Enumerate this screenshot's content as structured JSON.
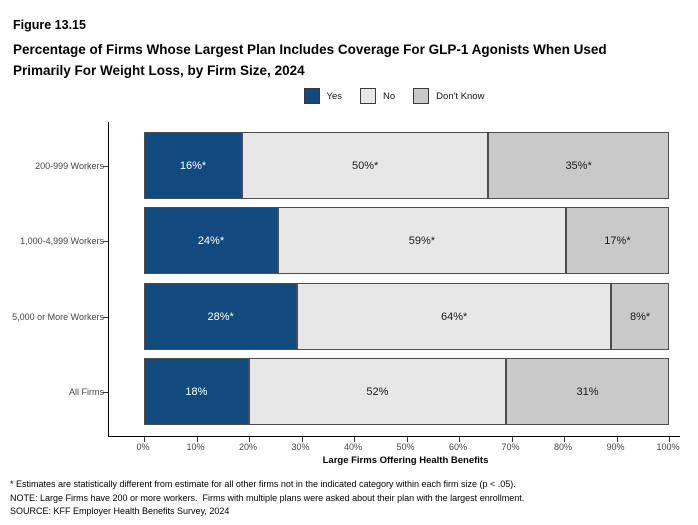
{
  "figure": {
    "number": "Figure 13.15",
    "title_line1": "Percentage of Firms Whose Largest Plan Includes Coverage For GLP-1 Agonists When Used",
    "title_line2": "Primarily For Weight Loss, by Firm Size, 2024"
  },
  "chart_data": {
    "type": "bar",
    "orientation": "horizontal",
    "stacked": true,
    "title": "Percentage of Firms Whose Largest Plan Includes Coverage For GLP-1 Agonists When Used Primarily For Weight Loss, by Firm Size, 2024",
    "categories": [
      "200-999 Workers",
      "1,000-4,999 Workers",
      "5,000 or More Workers",
      "All Firms"
    ],
    "series": [
      {
        "name": "Yes",
        "color": "#114a7f",
        "text_color": "#ffffff",
        "values": [
          16,
          24,
          28,
          18
        ],
        "labels": [
          "16%*",
          "24%*",
          "28%*",
          "18%"
        ]
      },
      {
        "name": "No",
        "color": "#e7e7e7",
        "text_color": "#1a1a1a",
        "values": [
          50,
          59,
          64,
          52
        ],
        "labels": [
          "50%*",
          "59%*",
          "64%*",
          "52%"
        ]
      },
      {
        "name": "Don't Know",
        "color": "#c9c9c9",
        "text_color": "#1a1a1a",
        "values": [
          35,
          17,
          8,
          31
        ],
        "labels": [
          "35%*",
          "17%*",
          "8%*",
          "31%"
        ]
      }
    ],
    "xlabel": "Large Firms Offering Health Benefits",
    "x_ticks": [
      "0%",
      "10%",
      "20%",
      "30%",
      "40%",
      "50%",
      "60%",
      "70%",
      "80%",
      "90%",
      "100%"
    ],
    "xlim": [
      0,
      100
    ],
    "grid": false,
    "legend_position": "top",
    "segment_border_color": "#4d4d4d"
  },
  "footnotes": [
    "* Estimates are statistically different from estimate for all other firms not in the indicated category within each firm size (p < .05).",
    "NOTE: Large Firms have 200 or more workers.  Firms with multiple plans were asked about their plan with the largest enrollment.",
    "SOURCE: KFF Employer Health Benefits Survey, 2024"
  ]
}
